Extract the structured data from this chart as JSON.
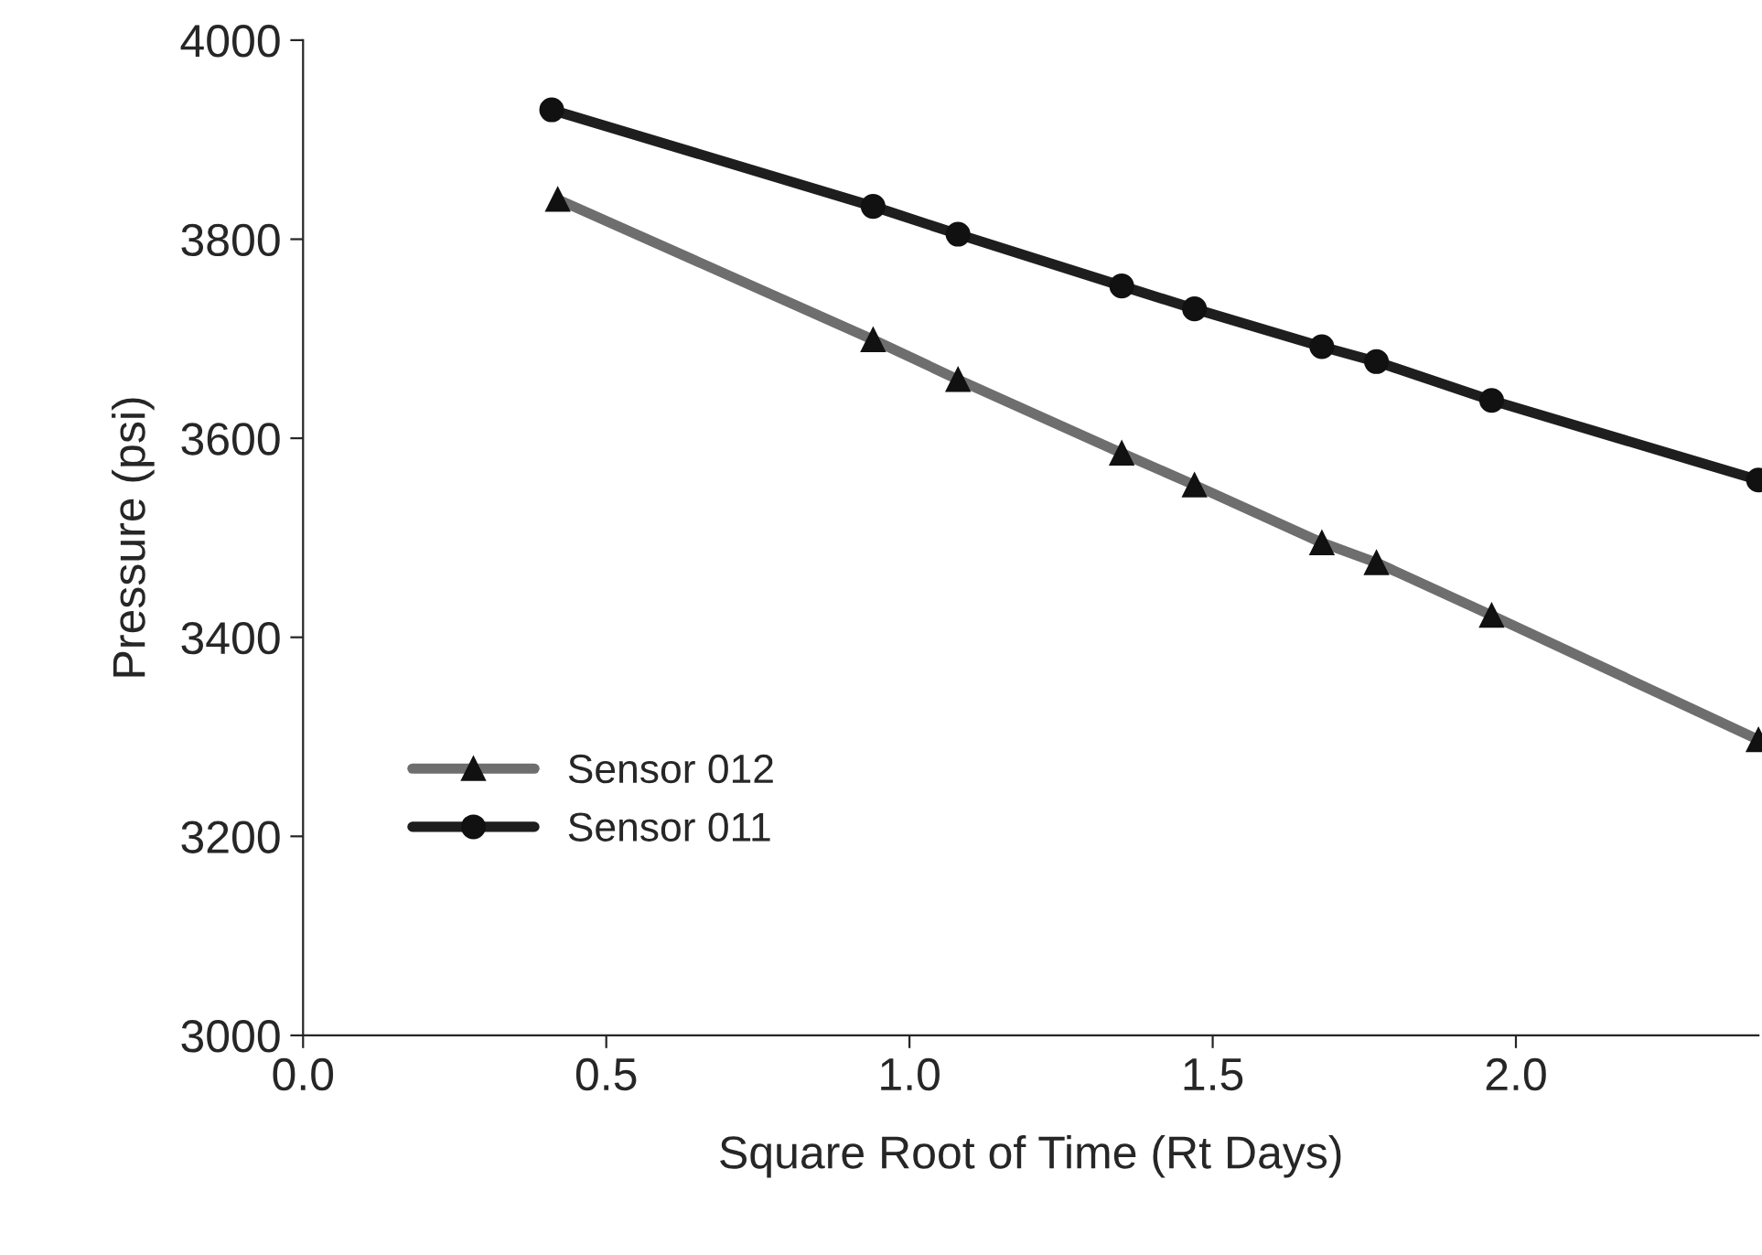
{
  "chart_data": {
    "type": "line",
    "xlabel": "Square Root of Time (Rt Days)",
    "ylabel": "Pressure (psi)",
    "xlim": [
      0,
      2.4
    ],
    "xticks": [
      {
        "value": 0,
        "label": "0.0"
      },
      0.5,
      {
        "value": 1,
        "label": "1.0"
      },
      1.5,
      {
        "value": 2,
        "label": "2.0"
      }
    ],
    "ylim": [
      3000,
      4000
    ],
    "yticks": [
      3000,
      3200,
      3400,
      3600,
      3800,
      4000
    ],
    "grid": false,
    "legend": "bottom left",
    "line_style": "solid",
    "series": [
      {
        "name": "Sensor 012",
        "color": "#6e6e6e",
        "marker": "triangle",
        "x": [
          0.42,
          0.94,
          1.08,
          1.35,
          1.47,
          1.68,
          1.77,
          1.96,
          2.4
        ],
        "values": [
          3840,
          3699,
          3659,
          3585,
          3553,
          3495,
          3475,
          3422,
          3297
        ]
      },
      {
        "name": "Sensor 011",
        "color": "#1e1e1e",
        "marker": "circle",
        "x": [
          0.41,
          0.94,
          1.08,
          1.35,
          1.47,
          1.68,
          1.77,
          1.96,
          2.4
        ],
        "values": [
          3930,
          3833,
          3805,
          3753,
          3730,
          3692,
          3677,
          3638,
          3558
        ]
      }
    ]
  }
}
